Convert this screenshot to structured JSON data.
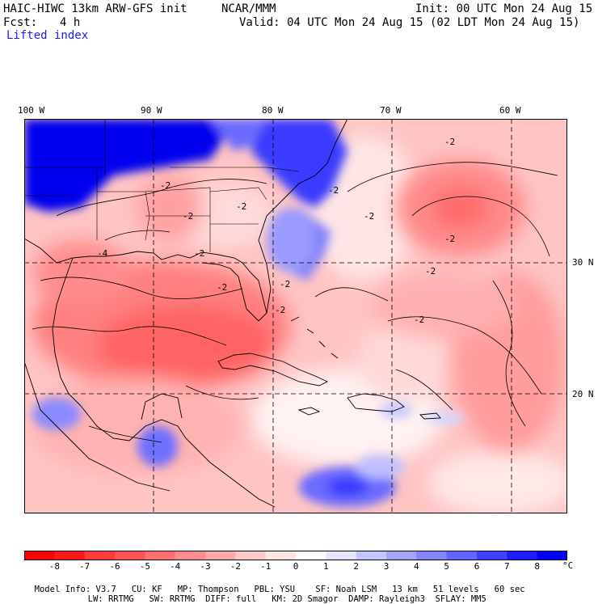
{
  "header": {
    "model_title": "HAIC-HIWC 13km ARW-GFS init",
    "org": "NCAR/MMM",
    "init": "Init: 00 UTC Mon 24 Aug 15",
    "fcst_label": "Fcst:",
    "fcst_value": "4 h",
    "valid": "Valid: 04 UTC Mon 24 Aug 15 (02 LDT Mon 24 Aug 15)",
    "field": "Lifted index"
  },
  "map": {
    "lon_labels": [
      "100 W",
      "90 W",
      "80 W",
      "70 W",
      "60 W"
    ],
    "lat_labels": [
      "30 N",
      "20 N"
    ],
    "contour_labels": [
      "-2",
      "-2",
      "-2",
      "-2",
      "-2",
      "-2",
      "-2",
      "-2",
      "-2",
      "-2",
      "-2",
      "-2",
      "-2",
      "-4"
    ]
  },
  "legend": {
    "tick_labels": [
      "-8",
      "-7",
      "-6",
      "-5",
      "-4",
      "-3",
      "-2",
      "-1",
      "0",
      "1",
      "2",
      "3",
      "4",
      "5",
      "6",
      "7",
      "8"
    ],
    "unit": "°C",
    "colors": [
      "#ff0000",
      "#ff1a1a",
      "#ff3b3b",
      "#ff5555",
      "#ff7070",
      "#ff8c8c",
      "#ffa8a8",
      "#ffc8c8",
      "#ffe4e4",
      "#ffffff",
      "#e4e4ff",
      "#c4c4ff",
      "#a4a4ff",
      "#8484ff",
      "#6464ff",
      "#4040ff",
      "#1c1cff",
      "#0000ff"
    ]
  },
  "footer": {
    "line1": [
      "Model Info: V3.7",
      "CU: KF",
      "MP: Thompson",
      "PBL: YSU",
      "SF: Noah LSM",
      "13 km",
      "51 levels",
      "60 sec"
    ],
    "line2": [
      "LW: RRTMG",
      "SW: RRTMG",
      "DIFF: full",
      "KM: 2D Smagor",
      "DAMP: Rayleigh3",
      "SFLAY: MM5"
    ]
  }
}
